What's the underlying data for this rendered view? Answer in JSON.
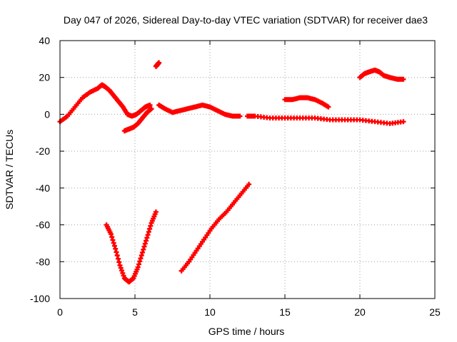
{
  "chart_data": {
    "type": "scatter",
    "title": "Day 047 of 2026, Sidereal Day-to-day VTEC variation (SDTVAR) for receiver dae3",
    "xlabel": "GPS time / hours",
    "ylabel": "SDTVAR / TECUs",
    "xlim": [
      0,
      25
    ],
    "ylim": [
      -100,
      40
    ],
    "xticks": [
      0,
      5,
      10,
      15,
      20,
      25
    ],
    "xtick_labels": [
      "0",
      "5",
      "10",
      "15",
      "20",
      "25"
    ],
    "yticks": [
      -100,
      -80,
      -60,
      -40,
      -20,
      0,
      20,
      40
    ],
    "ytick_labels": [
      "-100",
      "-80",
      "-60",
      "-40",
      "-20",
      "0",
      "20",
      "40"
    ],
    "grid": true,
    "marker": "+",
    "color": "#ff0000",
    "series": [
      {
        "name": "arc-main-early",
        "x": [
          0.0,
          0.5,
          1.0,
          1.5,
          2.0,
          2.5,
          2.8,
          3.0,
          3.3,
          3.6,
          3.9,
          4.2,
          4.5,
          4.8,
          5.1,
          5.4,
          5.7,
          6.0
        ],
        "y": [
          -4,
          -1,
          4,
          9,
          12,
          14,
          16,
          15,
          13,
          10,
          7,
          4,
          0,
          -1,
          0,
          2,
          4,
          5
        ]
      },
      {
        "name": "arc-low-branch",
        "x": [
          4.3,
          4.6,
          4.9,
          5.2,
          5.5,
          5.8,
          6.1
        ],
        "y": [
          -9,
          -8,
          -7,
          -5,
          -2,
          1,
          3
        ]
      },
      {
        "name": "arc-spike",
        "x": [
          6.4,
          6.5,
          6.6
        ],
        "y": [
          26,
          27,
          28
        ]
      },
      {
        "name": "arc-mid",
        "x": [
          6.6,
          7.0,
          7.5,
          8.0,
          8.5,
          9.0,
          9.5,
          10.0,
          10.5,
          11.0,
          11.5,
          12.0
        ],
        "y": [
          5,
          3,
          1,
          2,
          3,
          4,
          5,
          4,
          2,
          0,
          -1,
          -1
        ]
      },
      {
        "name": "arc-flat",
        "x": [
          12.5,
          13.0,
          14.0,
          15.0,
          16.0,
          17.0,
          18.0,
          19.0,
          20.0,
          21.0,
          22.0,
          22.9
        ],
        "y": [
          -1,
          -1,
          -2,
          -2,
          -2,
          -2,
          -3,
          -3,
          -3,
          -4,
          -5,
          -4
        ]
      },
      {
        "name": "arc-hump-16",
        "x": [
          15.0,
          15.5,
          16.0,
          16.5,
          17.0,
          17.5,
          17.9
        ],
        "y": [
          8,
          8,
          9,
          9,
          8,
          6,
          4
        ]
      },
      {
        "name": "arc-late",
        "x": [
          20.0,
          20.3,
          20.6,
          21.0,
          21.3,
          21.6,
          22.0,
          22.5,
          22.9
        ],
        "y": [
          20,
          22,
          23,
          24,
          23,
          21,
          20,
          19,
          19
        ]
      },
      {
        "name": "arc-v-dip",
        "x": [
          3.1,
          3.4,
          3.7,
          4.0,
          4.3,
          4.6,
          4.9,
          5.2,
          5.5,
          5.8,
          6.1,
          6.4
        ],
        "y": [
          -60,
          -65,
          -73,
          -82,
          -89,
          -91,
          -89,
          -83,
          -75,
          -67,
          -59,
          -53
        ]
      },
      {
        "name": "arc-rise",
        "x": [
          8.1,
          8.6,
          9.1,
          9.6,
          10.1,
          10.6,
          11.1,
          11.6,
          12.1,
          12.6
        ],
        "y": [
          -85,
          -80,
          -74,
          -68,
          -62,
          -57,
          -53,
          -48,
          -43,
          -38
        ]
      }
    ]
  }
}
